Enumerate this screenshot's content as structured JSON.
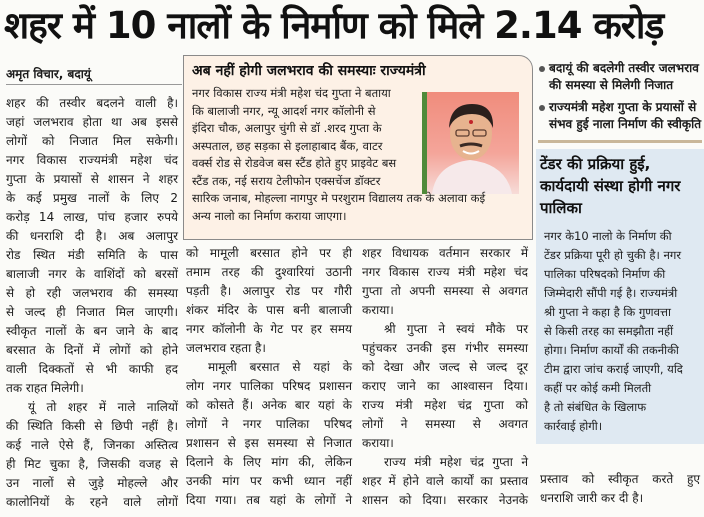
{
  "headline": "शहर में 10 नालों के निर्माण को मिले 2.14 करोड़",
  "byline": "अमृत विचार, बदायूं",
  "sidebox": {
    "title": "अब नहीं होगी जलभराव की समस्याः राज्यमंत्री",
    "lines": [
      "नगर विकास राज्य मंत्री महेश चंद गुप्ता ने बताया",
      "कि बालाजी नगर, न्यू आदर्श नगर कॉलोनी से",
      "इंदिरा चौक, अलापुर चुंगी से डॉ .शरद गुप्ता के",
      "अस्पताल, छह सड़का से इलाहाबाद बैंक, वाटर",
      "वर्क्स रोड से रोडवेज बस स्टैंड होते हुए प्राइवेट बस",
      "स्टैंड तक, नई सराय टेलीफोन एक्सचेंज डॉक्टर",
      "सारिक जनाब, मोहल्ला नागपुर मे परशुराम विद्यालय तक के अलावा कई",
      "अन्य नालो का निर्माण कराया जाएगा।"
    ],
    "photo_icon": "minister-portrait"
  },
  "highlights": [
    "बदायूं की बदलेगी तस्वीर जलभराव की समस्या से मिलेगी निजात",
    "राज्यमंत्री महेश गुप्ता के प्रयासों से संभव हुई नाला निर्माण की स्वीकृति"
  ],
  "tender_box": {
    "title": "टेंडर की प्रक्रिया हुई, कार्यदायी संस्था होगी नगर पालिका",
    "lines": [
      "नगर के10 नालो के निर्माण की",
      "टेंडर प्रक्रिया पूरी हो चुकी है। नगर",
      "पालिका परिषदको निर्माण की",
      "जिम्मेदारी सौंपी गई है। राज्यमंत्री",
      "श्री गुप्ता ने कहा है कि गुणवत्ता",
      "से किसी तरह का समझौता नहीं",
      "होगा। निर्माण कार्यों की तकनीकी",
      "टीम द्वारा जांच कराई जाएगी, यदि",
      "कहीं पर कोई कमी मिलती",
      "है तो संबंधित के खिलाफ",
      "कार्रवाई होगी।"
    ]
  },
  "columns": [
    [
      {
        "indent": false,
        "complete": true,
        "lines": [
          "शहर की तस्वीर बदलने वाली है।",
          "जहां जलभराव होता था अब इससे",
          "लोगों को निजात मिल सकेगी।",
          "नगर विकास राज्यमंत्री महेश चंद",
          "गुप्ता के प्रयासों से शासन ने शहर",
          "के कई प्रमुख नालों के लिए 2",
          "करोड़ 14 लाख, पांच हजार रुपये",
          "की धनराशि दी है। अब अलापुर",
          "रोड स्थित मंडी समिति के पास",
          "बालाजी नगर के वाशिंदों को बरसों",
          "से हो रही जलभराव की समस्या",
          "से जल्द ही निजात मिल जाएगी।",
          "स्वीकृत नालों के बन जाने के बाद",
          "बरसात के दिनों में लोगों को होने",
          "वाली दिक्कतों से भी काफी हद",
          "तक राहत मिलेगी।"
        ]
      },
      {
        "indent": true,
        "complete": false,
        "lines": [
          "यूं तो शहर में नाले नालियों",
          "की स्थिति किसी से छिपी नहीं है।",
          "कई नाले ऐसे हैं, जिनका अस्तित्व",
          "ही मिट चुका है, जिसकी वजह से",
          "उन नालों से जुड़े मोहल्ले और",
          "कालोनियों के रहने वाले लोगों"
        ]
      }
    ],
    [
      {
        "indent": false,
        "complete": true,
        "lines": [
          "को मामूली बरसात होने पर ही",
          "तमाम तरह की दुश्वारियां उठानी",
          "पड़ती है। अलापुर रोड पर गौरी",
          "शंकर मंदिर के पास बनी बालाजी",
          "नगर कॉलोनी के गेट पर हर समय",
          "जलभराव रहता है।"
        ]
      },
      {
        "indent": true,
        "complete": false,
        "lines": [
          "मामूली बरसात से यहां के",
          "लोग नगर पालिका परिषद प्रशासन",
          "को कोसते हैं। अनेक बार यहां के",
          "लोगों ने नगर पालिका परिषद",
          "प्रशासन से इस समस्या से निजात",
          "दिलाने के लिए मांग की, लेकिन",
          "उनकी मांग पर कभी ध्यान नहीं",
          "दिया गया। तब यहां के लोगों ने"
        ]
      }
    ],
    [
      {
        "indent": false,
        "complete": true,
        "lines": [
          "शहर विधायक वर्तमान सरकार में",
          "नगर विकास राज्य मंत्री महेश चंद",
          "गुप्ता तो अपनी समस्या से अवगत",
          "कराया।"
        ]
      },
      {
        "indent": true,
        "complete": true,
        "lines": [
          "श्री गुप्ता ने स्वयं मौके पर",
          "पहुंचकर उनकी इस गंभीर समस्या",
          "को देखा और जल्द से जल्द दूर",
          "कराए जाने का आश्वासन दिया।",
          "राज्य मंत्री महेश चंद्र गुप्ता को",
          "लोगों ने समस्या से अवगत",
          "कराया।"
        ]
      },
      {
        "indent": true,
        "complete": false,
        "lines": [
          "राज्य मंत्री महेश चंद्र गुप्ता ने",
          "शहर में होने वाले कार्यों का प्रस्ताव",
          "शासन को दिया। सरकार नेउनके"
        ]
      }
    ],
    [
      {
        "indent": false,
        "complete": true,
        "lines": [
          "प्रस्ताव को स्वीकृत करते हुए",
          "धनराशि जारी कर दी है।"
        ]
      }
    ]
  ]
}
